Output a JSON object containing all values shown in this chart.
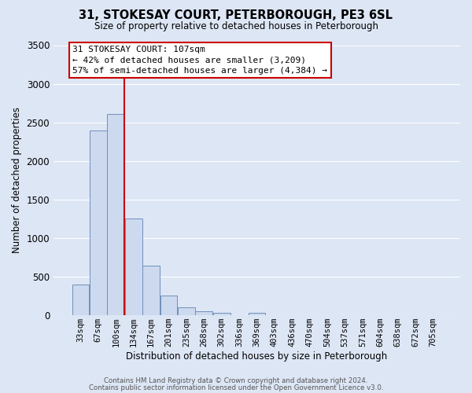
{
  "title": "31, STOKESAY COURT, PETERBOROUGH, PE3 6SL",
  "subtitle": "Size of property relative to detached houses in Peterborough",
  "xlabel": "Distribution of detached houses by size in Peterborough",
  "ylabel": "Number of detached properties",
  "bar_color": "#ccd9ee",
  "bar_edge_color": "#7090bb",
  "background_color": "#dde6f5",
  "grid_color": "#ffffff",
  "categories": [
    "33sqm",
    "67sqm",
    "100sqm",
    "134sqm",
    "167sqm",
    "201sqm",
    "235sqm",
    "268sqm",
    "302sqm",
    "336sqm",
    "369sqm",
    "403sqm",
    "436sqm",
    "470sqm",
    "504sqm",
    "537sqm",
    "571sqm",
    "604sqm",
    "638sqm",
    "672sqm",
    "705sqm"
  ],
  "bar_heights": [
    400,
    2400,
    2610,
    1250,
    640,
    260,
    100,
    55,
    30,
    0,
    30,
    0,
    0,
    0,
    0,
    0,
    0,
    0,
    0,
    0,
    0
  ],
  "ylim": [
    0,
    3500
  ],
  "yticks": [
    0,
    500,
    1000,
    1500,
    2000,
    2500,
    3000,
    3500
  ],
  "vline_color": "#cc0000",
  "vline_index": 2.5,
  "annotation_title": "31 STOKESAY COURT: 107sqm",
  "annotation_line1": "← 42% of detached houses are smaller (3,209)",
  "annotation_line2": "57% of semi-detached houses are larger (4,384) →",
  "footer_line1": "Contains HM Land Registry data © Crown copyright and database right 2024.",
  "footer_line2": "Contains public sector information licensed under the Open Government Licence v3.0."
}
